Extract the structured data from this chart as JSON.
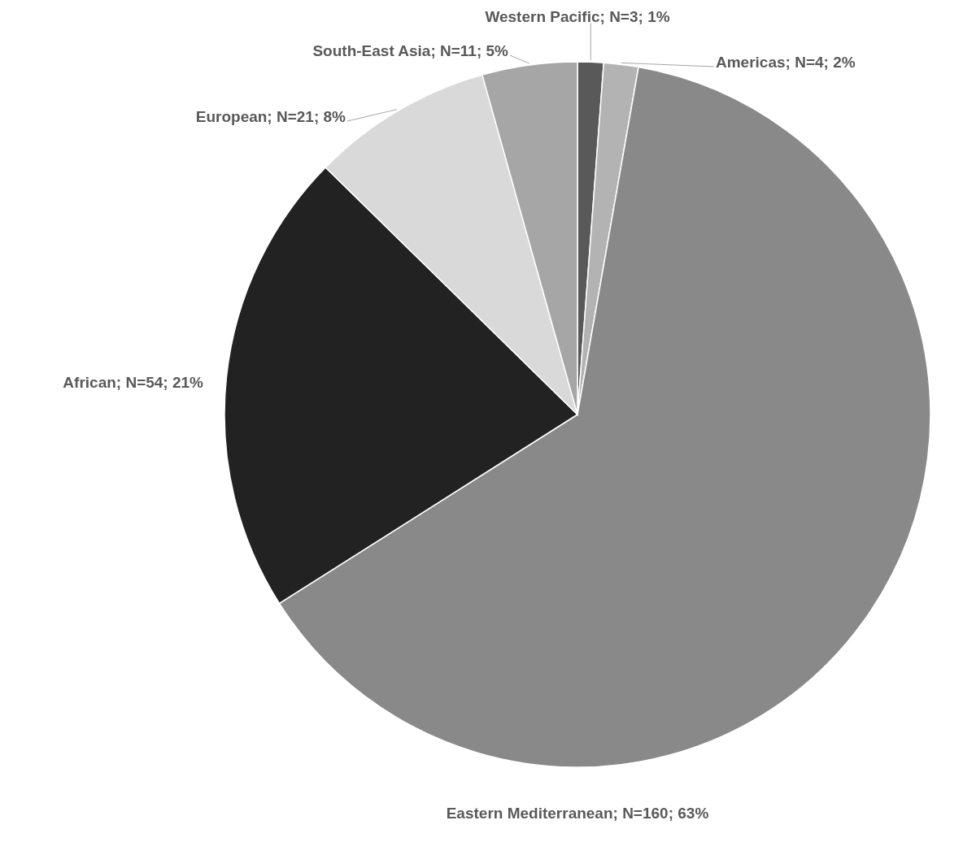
{
  "chart_data": {
    "type": "pie",
    "categories": [
      "Western Pacific",
      "Americas",
      "Eastern Mediterranean",
      "African",
      "European",
      "South-East Asia"
    ],
    "values": [
      3,
      4,
      160,
      54,
      21,
      11
    ],
    "value_labels": [
      "N=3; 1%",
      "N=4; 2%",
      "N=160; 63%",
      "N=54; 21%",
      "N=21; 8%",
      "N=11; 5%"
    ],
    "colors": [
      "#595959",
      "#b3b3b3",
      "#898989",
      "#222222",
      "#d9d9d9",
      "#a6a6a6"
    ]
  }
}
